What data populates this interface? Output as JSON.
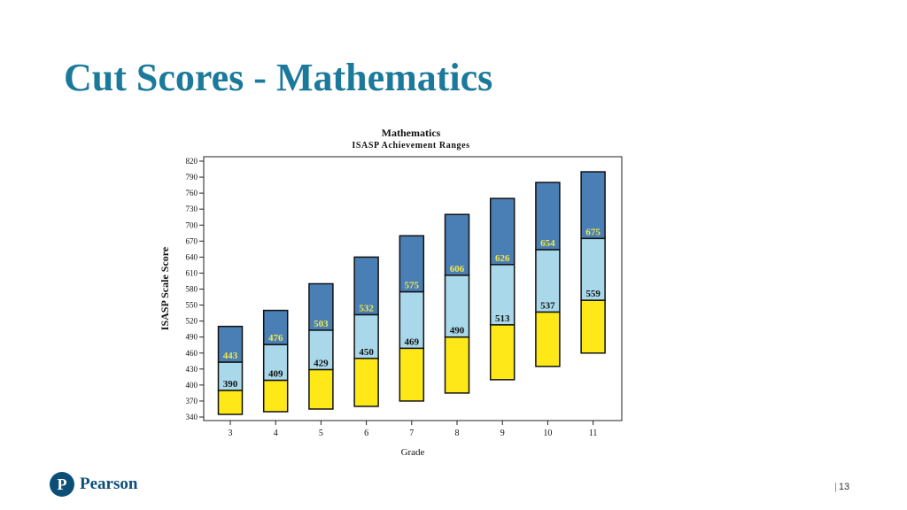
{
  "slide": {
    "title": "Cut Scores - Mathematics",
    "page_number": "13",
    "logo_text": "Pearson",
    "logo_letter": "P"
  },
  "chart_data": {
    "type": "bar",
    "subtype": "stacked-floating-range",
    "title": "Mathematics",
    "subtitle": "ISASP Achievement Ranges",
    "xlabel": "Grade",
    "ylabel": "ISASP Scale Score",
    "ylim": [
      340,
      820
    ],
    "yticks": [
      340,
      370,
      400,
      430,
      460,
      490,
      520,
      550,
      580,
      610,
      640,
      670,
      700,
      730,
      760,
      790,
      820
    ],
    "categories": [
      "3",
      "4",
      "5",
      "6",
      "7",
      "8",
      "9",
      "10",
      "11"
    ],
    "min": [
      345,
      350,
      355,
      360,
      370,
      385,
      410,
      435,
      460
    ],
    "cut_low": [
      390,
      409,
      429,
      450,
      469,
      490,
      513,
      537,
      559
    ],
    "cut_high": [
      443,
      476,
      503,
      532,
      575,
      606,
      626,
      654,
      675
    ],
    "max": [
      510,
      540,
      590,
      640,
      680,
      720,
      750,
      780,
      800
    ],
    "colors": {
      "low_band": "#ffe817",
      "mid_band": "#a8d8ea",
      "high_band": "#4a7fb5",
      "high_label": "#f2e84a",
      "mid_label": "#111111"
    },
    "grid": false,
    "legend": "none"
  }
}
